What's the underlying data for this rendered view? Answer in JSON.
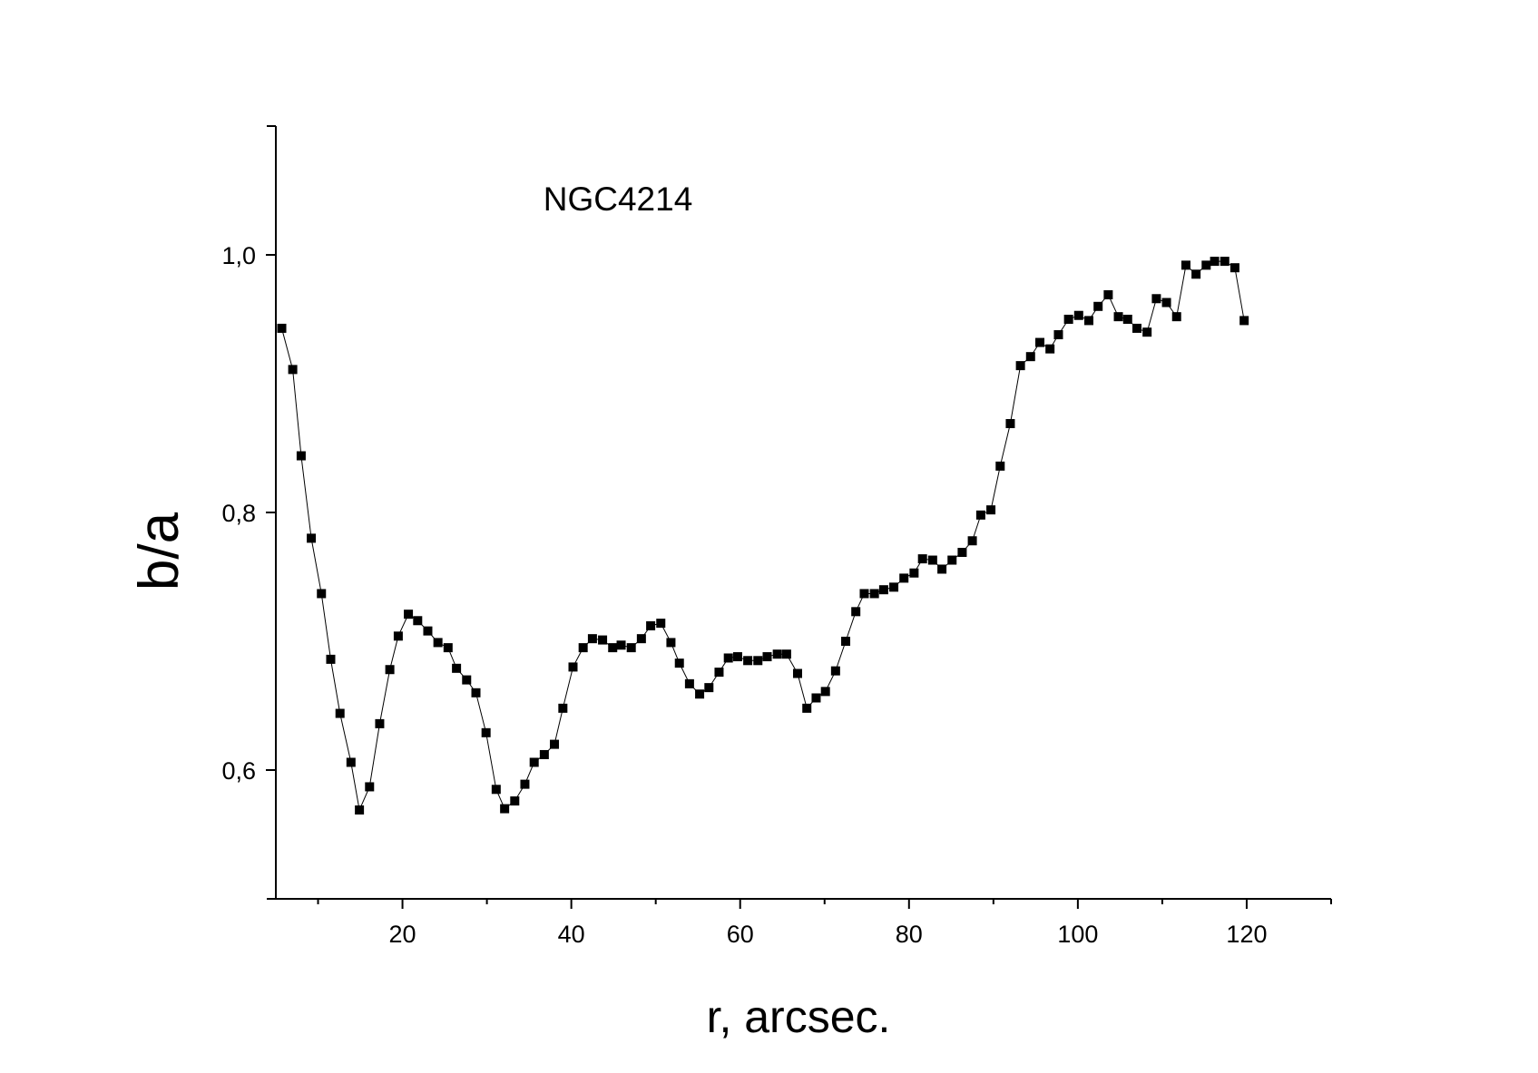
{
  "chart_data": {
    "type": "line",
    "title": "NGC4214",
    "x_label": "r, arcsec.",
    "y_label": "b/a",
    "color": "#000000",
    "marker": "square",
    "xlim": [
      5,
      130
    ],
    "xticks": [
      20,
      40,
      60,
      80,
      100,
      120
    ],
    "xminorticks": [
      10,
      30,
      50,
      70,
      90,
      110,
      130
    ],
    "ylim": [
      0.5,
      1.1
    ],
    "yticks": [
      {
        "value": 0.6,
        "label": "0,6"
      },
      {
        "value": 0.8,
        "label": "0,8"
      },
      {
        "value": 1.0,
        "label": "1,0"
      }
    ],
    "grid": false,
    "x": [
      5.7,
      7.0,
      8.0,
      9.2,
      10.4,
      11.5,
      12.6,
      13.9,
      14.9,
      16.1,
      17.3,
      18.5,
      19.5,
      20.7,
      21.8,
      23.0,
      24.2,
      25.4,
      26.4,
      27.6,
      28.7,
      29.9,
      31.1,
      32.1,
      33.3,
      34.5,
      35.6,
      36.8,
      38.0,
      39.0,
      40.2,
      41.4,
      42.5,
      43.7,
      44.9,
      45.9,
      47.1,
      48.3,
      49.4,
      50.6,
      51.8,
      52.8,
      54.0,
      55.2,
      56.3,
      57.5,
      58.6,
      59.7,
      60.9,
      62.1,
      63.2,
      64.4,
      65.5,
      66.8,
      67.9,
      69.0,
      70.1,
      71.3,
      72.5,
      73.7,
      74.7,
      75.9,
      77.0,
      78.2,
      79.4,
      80.6,
      81.6,
      82.8,
      83.9,
      85.1,
      86.3,
      87.5,
      88.5,
      89.7,
      90.8,
      92.0,
      93.2,
      94.4,
      95.5,
      96.7,
      97.7,
      98.9,
      100.1,
      101.3,
      102.4,
      103.6,
      104.8,
      105.9,
      107.0,
      108.2,
      109.3,
      110.5,
      111.7,
      112.8,
      114.0,
      115.2,
      116.2,
      117.4,
      118.6,
      119.7
    ],
    "values": [
      0.943,
      0.911,
      0.844,
      0.78,
      0.737,
      0.686,
      0.644,
      0.606,
      0.569,
      0.587,
      0.636,
      0.678,
      0.704,
      0.721,
      0.716,
      0.708,
      0.699,
      0.695,
      0.679,
      0.67,
      0.66,
      0.629,
      0.585,
      0.57,
      0.576,
      0.589,
      0.606,
      0.612,
      0.62,
      0.648,
      0.68,
      0.695,
      0.702,
      0.701,
      0.695,
      0.697,
      0.695,
      0.702,
      0.712,
      0.714,
      0.699,
      0.683,
      0.667,
      0.659,
      0.664,
      0.676,
      0.687,
      0.688,
      0.685,
      0.685,
      0.688,
      0.69,
      0.69,
      0.675,
      0.648,
      0.656,
      0.661,
      0.677,
      0.7,
      0.723,
      0.737,
      0.737,
      0.74,
      0.742,
      0.749,
      0.753,
      0.764,
      0.763,
      0.756,
      0.763,
      0.769,
      0.778,
      0.798,
      0.802,
      0.836,
      0.869,
      0.914,
      0.921,
      0.932,
      0.927,
      0.938,
      0.95,
      0.953,
      0.949,
      0.96,
      0.969,
      0.952,
      0.95,
      0.943,
      0.94,
      0.966,
      0.963,
      0.952,
      0.992,
      0.985,
      0.992,
      0.995,
      0.995,
      0.99,
      0.949
    ]
  }
}
